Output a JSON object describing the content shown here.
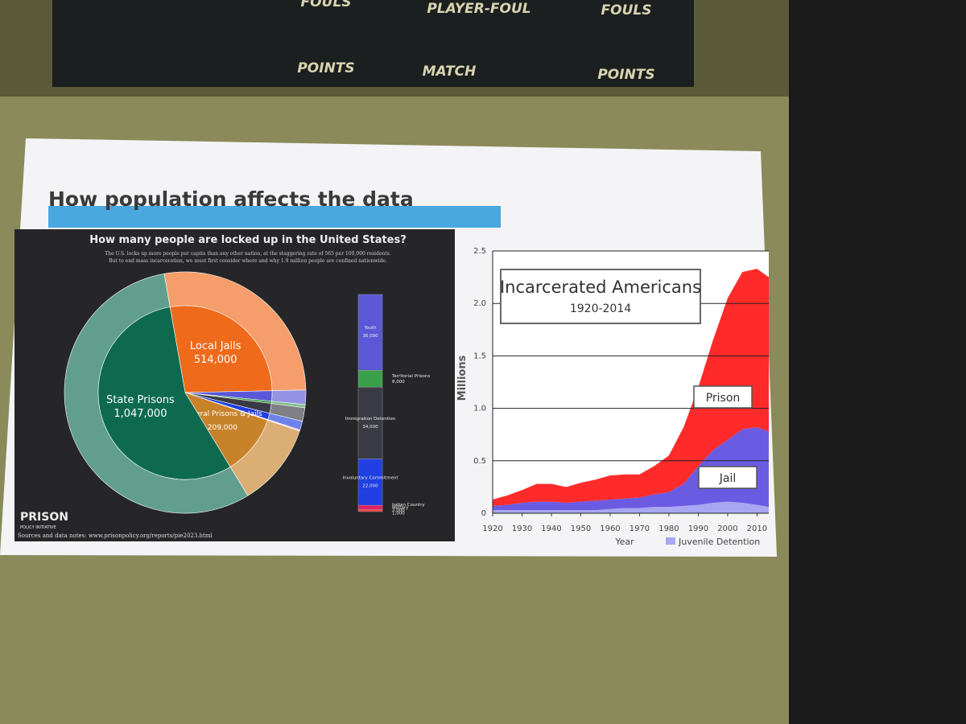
{
  "scoreboard": {
    "labels": [
      "FOULS",
      "PLAYER-FOUL",
      "FOULS",
      "POINTS",
      "MATCH",
      "POINTS"
    ]
  },
  "slide": {
    "title": "How population affects the data"
  },
  "infographic": {
    "title": "How many people are locked up in the United States?",
    "subtitle": [
      "The U.S. locks up more people per capita than any other nation, at the staggering rate of 565 per 100,000 residents.",
      "But to end mass incarceration, we must first consider where and why 1.9 million people are confined nationwide."
    ],
    "segments": [
      {
        "label": "Local Jails",
        "value": 514000,
        "value_label": "514,000",
        "color": "#f06a1c"
      },
      {
        "label": "Federal Prisons & Jails",
        "value": 209000,
        "value_label": "209,000",
        "color": "#c8822a"
      },
      {
        "label": "State Prisons",
        "value": 1047000,
        "value_label": "1,047,000",
        "color": "#0d6a4f"
      }
    ],
    "other": [
      {
        "label": "Youth",
        "value": 36000,
        "value_label": "36,000",
        "color": "#5a58d6"
      },
      {
        "label": "Territorial Prisons",
        "value": 8000,
        "value_label": "8,000",
        "color": "#3aa04a"
      },
      {
        "label": "Immigration Detention",
        "value": 34000,
        "value_label": "34,000",
        "color": "#3a3a44"
      },
      {
        "label": "Involuntary Commitment",
        "value": 22000,
        "value_label": "22,000",
        "color": "#1f3fe0"
      },
      {
        "label": "Indian Country",
        "value": 2000,
        "value_label": "2,000",
        "color": "#e02060"
      },
      {
        "label": "Military",
        "value": 1000,
        "value_label": "1,000",
        "color": "#f04040"
      }
    ],
    "logo": [
      "PRISON",
      "POLICY INITIATIVE"
    ],
    "source": "Sources and data notes: www.prisonpolicy.org/reports/pie2023.html"
  },
  "chart_data": {
    "type": "area",
    "title": "Incarcerated Americans",
    "subtitle": "1920-2014",
    "x_label": "Year",
    "y_label": "Millions",
    "x": [
      1920,
      1925,
      1930,
      1935,
      1940,
      1945,
      1950,
      1955,
      1960,
      1965,
      1970,
      1975,
      1980,
      1985,
      1990,
      1995,
      2000,
      2005,
      2010,
      2014
    ],
    "series": [
      {
        "name": "Juvenile Detention",
        "color": "#a9a6f2",
        "values": [
          0.03,
          0.03,
          0.03,
          0.03,
          0.03,
          0.03,
          0.03,
          0.03,
          0.04,
          0.05,
          0.05,
          0.06,
          0.06,
          0.07,
          0.08,
          0.1,
          0.11,
          0.1,
          0.08,
          0.06
        ]
      },
      {
        "name": "Jail",
        "color": "#6b5be2",
        "values": [
          0.04,
          0.05,
          0.07,
          0.08,
          0.08,
          0.07,
          0.08,
          0.09,
          0.09,
          0.09,
          0.1,
          0.12,
          0.14,
          0.21,
          0.37,
          0.5,
          0.59,
          0.7,
          0.74,
          0.72
        ]
      },
      {
        "name": "Prison",
        "color": "#ff2b2b",
        "values": [
          0.06,
          0.09,
          0.12,
          0.17,
          0.17,
          0.15,
          0.18,
          0.2,
          0.23,
          0.23,
          0.22,
          0.27,
          0.35,
          0.54,
          0.75,
          1.05,
          1.35,
          1.5,
          1.51,
          1.47
        ]
      }
    ],
    "xlim": [
      1920,
      2014
    ],
    "xticks": [
      1920,
      1930,
      1940,
      1950,
      1960,
      1970,
      1980,
      1990,
      2000,
      2010
    ],
    "ylim": [
      0,
      2.5
    ],
    "yticks": [
      0,
      0.5,
      {
        "value": 1,
        "label": "1.0"
      },
      1.5,
      {
        "value": 2,
        "label": "2.0"
      },
      2.5
    ],
    "grid": true,
    "stacked": true
  }
}
